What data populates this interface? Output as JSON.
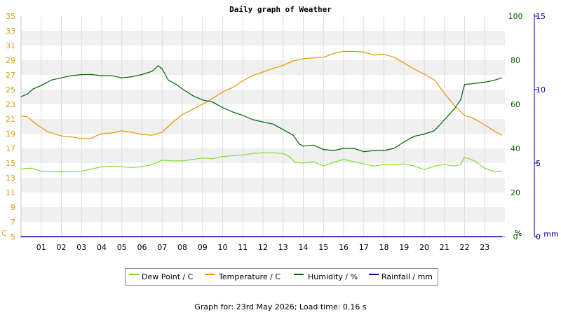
{
  "chart_data": {
    "type": "line",
    "title": "Daily graph of Weather",
    "x_tick_labels": [
      "01",
      "02",
      "03",
      "04",
      "05",
      "06",
      "07",
      "08",
      "09",
      "10",
      "11",
      "12",
      "13",
      "14",
      "15",
      "16",
      "17",
      "18",
      "19",
      "20",
      "21",
      "22",
      "23"
    ],
    "x_range": [
      0,
      24
    ],
    "axes": {
      "left": {
        "unit_label": "C",
        "range": [
          5,
          35
        ],
        "ticks": [
          "5",
          "7",
          "9",
          "11",
          "13",
          "15",
          "17",
          "19",
          "21",
          "23",
          "25",
          "27",
          "29",
          "31",
          "33",
          "35"
        ],
        "color": "#d4a017"
      },
      "right_humidity": {
        "unit_label": "%",
        "range": [
          0,
          100
        ],
        "ticks": [
          "0",
          "20",
          "40",
          "60",
          "80",
          "100"
        ],
        "color": "#006400"
      },
      "right_rain": {
        "unit_label": "mm",
        "range": [
          0,
          15
        ],
        "ticks": [
          "0",
          "5",
          "10",
          "15"
        ],
        "color": "#00008b"
      }
    },
    "grid": true,
    "series": [
      {
        "name": "Dew Point / C",
        "axis": "left",
        "color": "#7fdd2a",
        "points": [
          [
            0,
            14.2
          ],
          [
            0.5,
            14.3
          ],
          [
            1,
            13.9
          ],
          [
            2,
            13.8
          ],
          [
            3,
            13.9
          ],
          [
            3.5,
            14.2
          ],
          [
            4,
            14.5
          ],
          [
            4.5,
            14.6
          ],
          [
            5,
            14.5
          ],
          [
            5.5,
            14.4
          ],
          [
            6,
            14.5
          ],
          [
            6.5,
            14.8
          ],
          [
            7,
            15.4
          ],
          [
            7.5,
            15.3
          ],
          [
            8,
            15.3
          ],
          [
            8.5,
            15.5
          ],
          [
            9,
            15.7
          ],
          [
            9.5,
            15.6
          ],
          [
            10,
            15.9
          ],
          [
            10.5,
            16.0
          ],
          [
            11,
            16.1
          ],
          [
            11.5,
            16.3
          ],
          [
            12,
            16.4
          ],
          [
            12.5,
            16.4
          ],
          [
            13,
            16.3
          ],
          [
            13.3,
            15.9
          ],
          [
            13.6,
            15.1
          ],
          [
            14,
            15.0
          ],
          [
            14.5,
            15.2
          ],
          [
            15,
            14.6
          ],
          [
            15.5,
            15.1
          ],
          [
            16,
            15.5
          ],
          [
            16.5,
            15.2
          ],
          [
            17,
            14.9
          ],
          [
            17.5,
            14.6
          ],
          [
            18,
            14.8
          ],
          [
            18.5,
            14.8
          ],
          [
            19,
            14.9
          ],
          [
            19.5,
            14.6
          ],
          [
            20,
            14.1
          ],
          [
            20.5,
            14.6
          ],
          [
            21,
            14.8
          ],
          [
            21.5,
            14.6
          ],
          [
            21.8,
            14.8
          ],
          [
            22,
            15.8
          ],
          [
            22.5,
            15.3
          ],
          [
            23,
            14.3
          ],
          [
            23.5,
            13.8
          ],
          [
            23.85,
            13.9
          ]
        ]
      },
      {
        "name": "Temperature / C",
        "axis": "left",
        "color": "#e69500",
        "points": [
          [
            0,
            21.4
          ],
          [
            0.3,
            21.3
          ],
          [
            0.8,
            20.2
          ],
          [
            1.3,
            19.3
          ],
          [
            2,
            18.7
          ],
          [
            2.7,
            18.5
          ],
          [
            3,
            18.3
          ],
          [
            3.5,
            18.4
          ],
          [
            3.8,
            18.8
          ],
          [
            4,
            19.0
          ],
          [
            4.5,
            19.1
          ],
          [
            5,
            19.4
          ],
          [
            5.5,
            19.2
          ],
          [
            6,
            18.9
          ],
          [
            6.5,
            18.8
          ],
          [
            7,
            19.2
          ],
          [
            7.5,
            20.5
          ],
          [
            8,
            21.6
          ],
          [
            8.5,
            22.3
          ],
          [
            9,
            23.0
          ],
          [
            9.5,
            23.8
          ],
          [
            10,
            24.7
          ],
          [
            10.5,
            25.3
          ],
          [
            11,
            26.2
          ],
          [
            11.5,
            26.9
          ],
          [
            12,
            27.4
          ],
          [
            12.5,
            27.9
          ],
          [
            13,
            28.3
          ],
          [
            13.5,
            28.9
          ],
          [
            14,
            29.2
          ],
          [
            14.5,
            29.3
          ],
          [
            15,
            29.4
          ],
          [
            15.5,
            29.9
          ],
          [
            16,
            30.2
          ],
          [
            16.5,
            30.2
          ],
          [
            17,
            30.1
          ],
          [
            17.5,
            29.7
          ],
          [
            18,
            29.8
          ],
          [
            18.5,
            29.4
          ],
          [
            19,
            28.6
          ],
          [
            19.5,
            27.8
          ],
          [
            20,
            27.1
          ],
          [
            20.5,
            26.3
          ],
          [
            21,
            24.5
          ],
          [
            21.5,
            22.8
          ],
          [
            22,
            21.5
          ],
          [
            22.5,
            21.0
          ],
          [
            23,
            20.2
          ],
          [
            23.5,
            19.3
          ],
          [
            23.85,
            18.8
          ]
        ]
      },
      {
        "name": "Humidity / %",
        "axis": "right_humidity",
        "color": "#006400",
        "points": [
          [
            0,
            63.5
          ],
          [
            0.3,
            64.5
          ],
          [
            0.6,
            67
          ],
          [
            1,
            68.5
          ],
          [
            1.5,
            71
          ],
          [
            2,
            72
          ],
          [
            2.5,
            73
          ],
          [
            3,
            73.5
          ],
          [
            3.5,
            73.5
          ],
          [
            4,
            73
          ],
          [
            4.5,
            73
          ],
          [
            5,
            72
          ],
          [
            5.5,
            72.5
          ],
          [
            6,
            73.5
          ],
          [
            6.5,
            75
          ],
          [
            6.8,
            77.5
          ],
          [
            7,
            76
          ],
          [
            7.3,
            71
          ],
          [
            7.7,
            69
          ],
          [
            8,
            67
          ],
          [
            8.5,
            64
          ],
          [
            9,
            62
          ],
          [
            9.5,
            61
          ],
          [
            10,
            58.5
          ],
          [
            10.5,
            56.5
          ],
          [
            11,
            55
          ],
          [
            11.5,
            53
          ],
          [
            12,
            52
          ],
          [
            12.5,
            51
          ],
          [
            13,
            48.5
          ],
          [
            13.5,
            46
          ],
          [
            13.8,
            42
          ],
          [
            14,
            41
          ],
          [
            14.5,
            41.5
          ],
          [
            15,
            39.5
          ],
          [
            15.5,
            39
          ],
          [
            16,
            40
          ],
          [
            16.5,
            40
          ],
          [
            17,
            38.5
          ],
          [
            17.5,
            39
          ],
          [
            18,
            39
          ],
          [
            18.5,
            40
          ],
          [
            19,
            43
          ],
          [
            19.5,
            45.5
          ],
          [
            20,
            46.5
          ],
          [
            20.5,
            48
          ],
          [
            21,
            53
          ],
          [
            21.5,
            58
          ],
          [
            21.8,
            62
          ],
          [
            22,
            69
          ],
          [
            22.5,
            69.5
          ],
          [
            23,
            70
          ],
          [
            23.5,
            71
          ],
          [
            23.85,
            72
          ]
        ]
      },
      {
        "name": "Rainfall / mm",
        "axis": "right_rain",
        "color": "#0000a8",
        "points": [
          [
            0,
            0
          ],
          [
            23.85,
            0
          ]
        ]
      }
    ]
  },
  "legend": {
    "items": [
      {
        "label": "Dew Point / C",
        "color": "#7fdd2a"
      },
      {
        "label": "Temperature / C",
        "color": "#e69500"
      },
      {
        "label": "Humidity / %",
        "color": "#006400"
      },
      {
        "label": "Rainfall / mm",
        "color": "#0000a8"
      }
    ]
  },
  "footer": {
    "text": "Graph for: 23rd May 2026; Load time: 0.16 s"
  }
}
